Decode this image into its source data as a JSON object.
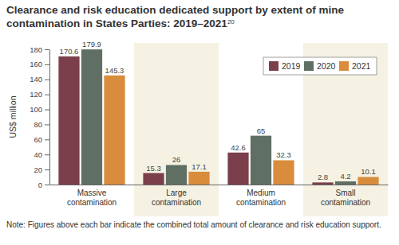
{
  "chart_data": {
    "type": "bar",
    "title": "Clearance and risk education dedicated support by extent of mine contamination in States Parties: 2019–2021",
    "title_footnote": "20",
    "y_label": "US$ million",
    "note": "Note: Figures above each bar indicate the combined total amount of clearance and risk education support.",
    "categories": [
      "Massive contamination",
      "Large contamination",
      "Medium contamination",
      "Small contamination"
    ],
    "series": [
      {
        "name": "2019",
        "color": "#7b3f4c",
        "values": [
          170.6,
          15.3,
          42.6,
          2.8
        ]
      },
      {
        "name": "2020",
        "color": "#5f6f64",
        "values": [
          179.9,
          26,
          65,
          4.2
        ]
      },
      {
        "name": "2021",
        "color": "#d98c3c",
        "values": [
          145.3,
          17.1,
          32.3,
          10.1
        ]
      }
    ],
    "ylim": [
      0,
      180
    ],
    "yticks": [
      0,
      20,
      40,
      60,
      80,
      100,
      120,
      140,
      160,
      180
    ],
    "grid": false,
    "legend": "upper right",
    "data_labels": true
  }
}
